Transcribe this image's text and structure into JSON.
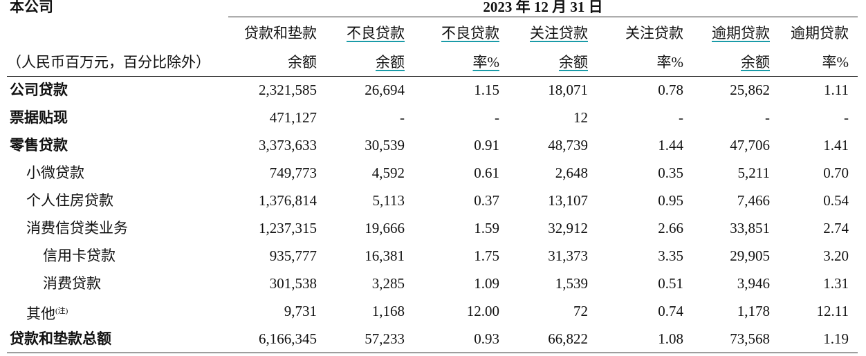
{
  "header": {
    "company": "本公司",
    "date": "2023 年 12 月 31 日",
    "unit_note": "（人民币百万元，百分比除外）",
    "columns": [
      [
        "贷款和垫款",
        "余额"
      ],
      [
        "不良贷款",
        "余额"
      ],
      [
        "不良贷款",
        "率%"
      ],
      [
        "关注贷款",
        "余额"
      ],
      [
        "关注贷款",
        "率%"
      ],
      [
        "逾期贷款",
        "余额"
      ],
      [
        "逾期贷款",
        "率%"
      ]
    ]
  },
  "table": {
    "rows": [
      {
        "label": "公司贷款",
        "values": [
          "2,321,585",
          "26,694",
          "1.15",
          "18,071",
          "0.78",
          "25,862",
          "1.11"
        ]
      },
      {
        "label": "票据贴现",
        "values": [
          "471,127",
          "-",
          "-",
          "12",
          "-",
          "-",
          "-"
        ]
      },
      {
        "label": "零售贷款",
        "values": [
          "3,373,633",
          "30,539",
          "0.91",
          "48,739",
          "1.44",
          "47,706",
          "1.41"
        ]
      },
      {
        "label": "小微贷款",
        "values": [
          "749,773",
          "4,592",
          "0.61",
          "2,648",
          "0.35",
          "5,211",
          "0.70"
        ]
      },
      {
        "label": "个人住房贷款",
        "values": [
          "1,376,814",
          "5,113",
          "0.37",
          "13,107",
          "0.95",
          "7,466",
          "0.54"
        ]
      },
      {
        "label": "消费信贷类业务",
        "values": [
          "1,237,315",
          "19,666",
          "1.59",
          "32,912",
          "2.66",
          "33,851",
          "2.74"
        ]
      },
      {
        "label": "信用卡贷款",
        "values": [
          "935,777",
          "16,381",
          "1.75",
          "31,373",
          "3.35",
          "29,905",
          "3.20"
        ]
      },
      {
        "label": "消费贷款",
        "values": [
          "301,538",
          "3,285",
          "1.09",
          "1,539",
          "0.51",
          "3,946",
          "1.31"
        ]
      },
      {
        "label": "其他",
        "note": "(注)",
        "values": [
          "9,731",
          "1,168",
          "12.00",
          "72",
          "0.74",
          "1,178",
          "12.11"
        ]
      },
      {
        "label": "贷款和垫款总额",
        "values": [
          "6,166,345",
          "57,233",
          "0.93",
          "66,822",
          "1.08",
          "73,568",
          "1.19"
        ]
      }
    ]
  }
}
